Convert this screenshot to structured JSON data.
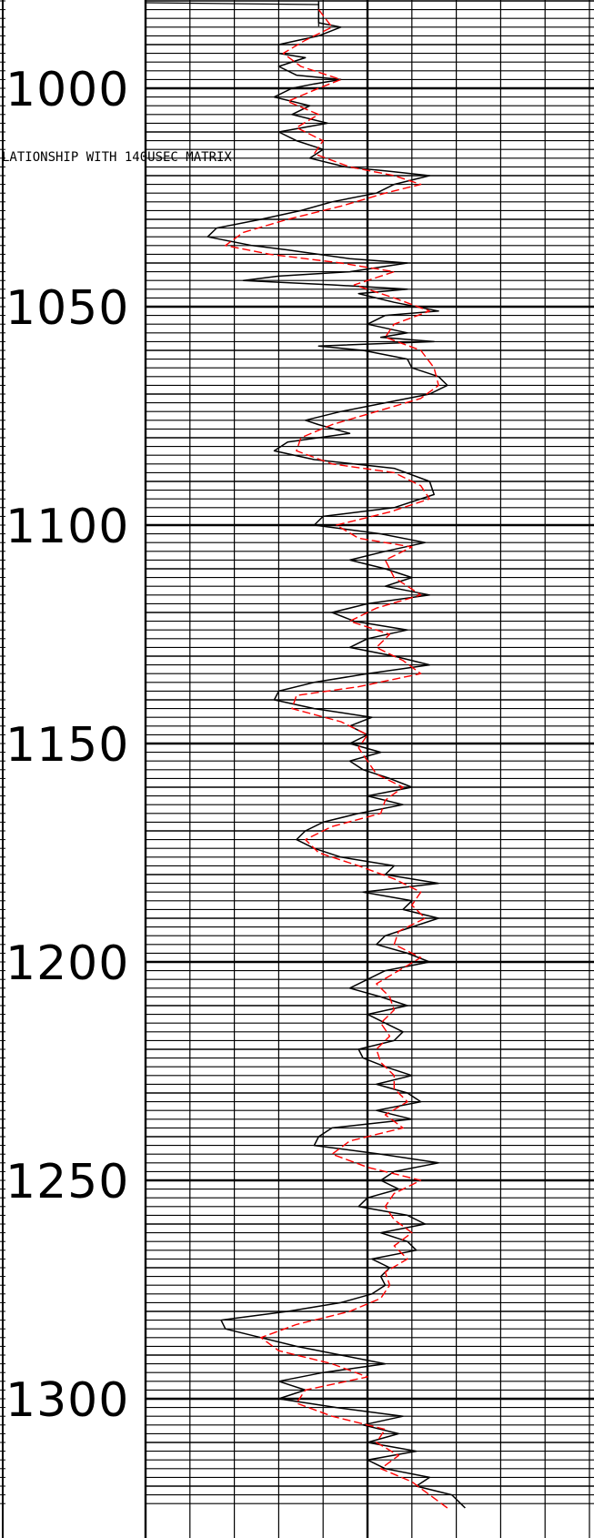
{
  "chart_data": {
    "type": "line",
    "title": "",
    "xlabel": "",
    "ylabel": "",
    "annotation": "LATIONSHIP WITH 140USEC MATRIX",
    "ylim": [
      980,
      1325
    ],
    "y_ticks": [
      1000,
      1050,
      1100,
      1150,
      1200,
      1250,
      1300
    ],
    "y_tick_labels": [
      "1000",
      "1050",
      "1100",
      "1150",
      "1200",
      "1250",
      "1300"
    ],
    "y_minor_step": 2,
    "xlim": [
      0,
      10
    ],
    "grid": true,
    "series": [
      {
        "color": "#000000",
        "style": "solid",
        "points": [
          [
            3.9,
            980
          ],
          [
            3.9,
            985
          ],
          [
            4.4,
            986
          ],
          [
            3.9,
            988
          ],
          [
            3.0,
            990
          ],
          [
            3.0,
            992
          ],
          [
            3.6,
            993
          ],
          [
            3.0,
            995
          ],
          [
            3.4,
            997
          ],
          [
            4.4,
            998
          ],
          [
            3.8,
            999
          ],
          [
            3.3,
            1000
          ],
          [
            2.9,
            1002
          ],
          [
            3.7,
            1004
          ],
          [
            3.3,
            1006
          ],
          [
            4.1,
            1008
          ],
          [
            3.0,
            1010
          ],
          [
            3.4,
            1012
          ],
          [
            4.0,
            1014
          ],
          [
            3.7,
            1016
          ],
          [
            4.5,
            1018
          ],
          [
            5.5,
            1019
          ],
          [
            6.4,
            1020
          ],
          [
            5.6,
            1022
          ],
          [
            5.2,
            1024
          ],
          [
            4.2,
            1026
          ],
          [
            3.5,
            1028
          ],
          [
            2.6,
            1030
          ],
          [
            1.6,
            1032
          ],
          [
            1.4,
            1034
          ],
          [
            2.4,
            1036
          ],
          [
            3.2,
            1037
          ],
          [
            4.6,
            1039
          ],
          [
            5.9,
            1040
          ],
          [
            4.6,
            1042
          ],
          [
            3.0,
            1043
          ],
          [
            2.2,
            1044
          ],
          [
            4.2,
            1045
          ],
          [
            5.9,
            1046
          ],
          [
            4.8,
            1047
          ],
          [
            5.6,
            1049
          ],
          [
            6.6,
            1051
          ],
          [
            5.4,
            1052
          ],
          [
            5.0,
            1054
          ],
          [
            5.9,
            1056
          ],
          [
            5.3,
            1057
          ],
          [
            6.5,
            1058
          ],
          [
            3.9,
            1059
          ],
          [
            4.9,
            1060
          ],
          [
            5.9,
            1062
          ],
          [
            6.0,
            1064
          ],
          [
            6.6,
            1066
          ],
          [
            6.8,
            1068
          ],
          [
            6.4,
            1070
          ],
          [
            5.4,
            1072
          ],
          [
            4.4,
            1074
          ],
          [
            3.6,
            1076
          ],
          [
            3.9,
            1077
          ],
          [
            4.6,
            1079
          ],
          [
            3.2,
            1081
          ],
          [
            2.9,
            1083
          ],
          [
            3.8,
            1085
          ],
          [
            5.6,
            1087
          ],
          [
            6.4,
            1090
          ],
          [
            6.5,
            1093
          ],
          [
            5.6,
            1096
          ],
          [
            4.0,
            1098
          ],
          [
            3.8,
            1100
          ],
          [
            5.3,
            1102
          ],
          [
            6.3,
            1104
          ],
          [
            5.4,
            1106
          ],
          [
            4.6,
            1108
          ],
          [
            5.4,
            1110
          ],
          [
            6.0,
            1112
          ],
          [
            5.4,
            1114
          ],
          [
            6.4,
            1116
          ],
          [
            5.0,
            1118
          ],
          [
            4.2,
            1120
          ],
          [
            4.7,
            1122
          ],
          [
            5.9,
            1124
          ],
          [
            5.0,
            1126
          ],
          [
            4.6,
            1128
          ],
          [
            5.6,
            1130
          ],
          [
            6.4,
            1132
          ],
          [
            5.0,
            1134
          ],
          [
            3.8,
            1136
          ],
          [
            3.0,
            1138
          ],
          [
            2.9,
            1140
          ],
          [
            3.8,
            1142
          ],
          [
            5.1,
            1144
          ],
          [
            4.6,
            1146
          ],
          [
            5.0,
            1148
          ],
          [
            4.6,
            1150
          ],
          [
            5.3,
            1152
          ],
          [
            4.6,
            1154
          ],
          [
            4.9,
            1156
          ],
          [
            5.5,
            1158
          ],
          [
            6.0,
            1160
          ],
          [
            5.0,
            1162
          ],
          [
            5.8,
            1164
          ],
          [
            4.8,
            1166
          ],
          [
            4.0,
            1168
          ],
          [
            3.6,
            1170
          ],
          [
            3.4,
            1172
          ],
          [
            3.8,
            1174
          ],
          [
            4.4,
            1176
          ],
          [
            5.6,
            1178
          ],
          [
            5.4,
            1180
          ],
          [
            6.6,
            1182
          ],
          [
            4.9,
            1184
          ],
          [
            6.0,
            1186
          ],
          [
            5.8,
            1188
          ],
          [
            6.6,
            1190
          ],
          [
            6.0,
            1192
          ],
          [
            5.4,
            1194
          ],
          [
            5.2,
            1196
          ],
          [
            5.9,
            1198
          ],
          [
            6.4,
            1200
          ],
          [
            5.4,
            1202
          ],
          [
            5.0,
            1204
          ],
          [
            4.6,
            1206
          ],
          [
            5.3,
            1208
          ],
          [
            5.9,
            1210
          ],
          [
            5.0,
            1212
          ],
          [
            5.4,
            1214
          ],
          [
            5.8,
            1216
          ],
          [
            5.6,
            1218
          ],
          [
            4.8,
            1220
          ],
          [
            4.9,
            1222
          ],
          [
            5.4,
            1224
          ],
          [
            6.0,
            1226
          ],
          [
            5.2,
            1228
          ],
          [
            5.9,
            1230
          ],
          [
            6.2,
            1232
          ],
          [
            5.2,
            1234
          ],
          [
            6.0,
            1236
          ],
          [
            4.2,
            1238
          ],
          [
            3.9,
            1240
          ],
          [
            3.8,
            1242
          ],
          [
            5.3,
            1244
          ],
          [
            6.6,
            1246
          ],
          [
            5.6,
            1248
          ],
          [
            5.3,
            1250
          ],
          [
            5.7,
            1252
          ],
          [
            5.0,
            1254
          ],
          [
            4.8,
            1256
          ],
          [
            5.9,
            1258
          ],
          [
            6.3,
            1260
          ],
          [
            5.3,
            1262
          ],
          [
            5.9,
            1264
          ],
          [
            6.1,
            1266
          ],
          [
            5.1,
            1268
          ],
          [
            5.5,
            1270
          ],
          [
            5.3,
            1272
          ],
          [
            5.4,
            1274
          ],
          [
            5.1,
            1276
          ],
          [
            4.4,
            1278
          ],
          [
            3.2,
            1280
          ],
          [
            1.7,
            1282
          ],
          [
            1.8,
            1284
          ],
          [
            2.6,
            1286
          ],
          [
            3.4,
            1288
          ],
          [
            4.4,
            1290
          ],
          [
            5.4,
            1292
          ],
          [
            4.0,
            1294
          ],
          [
            3.0,
            1296
          ],
          [
            3.6,
            1298
          ],
          [
            3.0,
            1300
          ],
          [
            4.3,
            1302
          ],
          [
            5.8,
            1304
          ],
          [
            4.9,
            1306
          ],
          [
            5.7,
            1308
          ],
          [
            5.0,
            1310
          ],
          [
            6.1,
            1312
          ],
          [
            5.0,
            1314
          ],
          [
            5.4,
            1316
          ],
          [
            6.4,
            1318
          ],
          [
            6.1,
            1320
          ],
          [
            6.9,
            1322
          ],
          [
            7.2,
            1325
          ]
        ]
      },
      {
        "color": "#ff0000",
        "style": "dashed",
        "points": [
          [
            3.9,
            982
          ],
          [
            4.2,
            986
          ],
          [
            3.6,
            989
          ],
          [
            3.1,
            992
          ],
          [
            3.5,
            995
          ],
          [
            4.4,
            998
          ],
          [
            3.9,
            1000
          ],
          [
            3.2,
            1003
          ],
          [
            3.9,
            1006
          ],
          [
            3.4,
            1009
          ],
          [
            4.0,
            1012
          ],
          [
            3.8,
            1015
          ],
          [
            4.6,
            1018
          ],
          [
            5.6,
            1020
          ],
          [
            6.2,
            1022
          ],
          [
            5.4,
            1024
          ],
          [
            4.4,
            1027
          ],
          [
            3.2,
            1030
          ],
          [
            2.2,
            1033
          ],
          [
            1.8,
            1036
          ],
          [
            2.8,
            1038
          ],
          [
            4.4,
            1040
          ],
          [
            5.6,
            1042
          ],
          [
            4.7,
            1045
          ],
          [
            5.6,
            1048
          ],
          [
            6.4,
            1051
          ],
          [
            5.6,
            1054
          ],
          [
            5.4,
            1057
          ],
          [
            6.2,
            1060
          ],
          [
            6.5,
            1064
          ],
          [
            6.6,
            1068
          ],
          [
            6.2,
            1071
          ],
          [
            5.2,
            1074
          ],
          [
            4.2,
            1077
          ],
          [
            3.5,
            1080
          ],
          [
            3.4,
            1083
          ],
          [
            4.2,
            1086
          ],
          [
            5.6,
            1088
          ],
          [
            6.2,
            1091
          ],
          [
            6.4,
            1094
          ],
          [
            5.5,
            1097
          ],
          [
            4.3,
            1100
          ],
          [
            4.8,
            1103
          ],
          [
            6.0,
            1105
          ],
          [
            5.4,
            1108
          ],
          [
            5.6,
            1112
          ],
          [
            6.2,
            1116
          ],
          [
            5.2,
            1119
          ],
          [
            4.6,
            1122
          ],
          [
            5.5,
            1125
          ],
          [
            5.2,
            1128
          ],
          [
            5.8,
            1131
          ],
          [
            6.2,
            1134
          ],
          [
            4.8,
            1137
          ],
          [
            3.4,
            1139
          ],
          [
            3.3,
            1142
          ],
          [
            4.4,
            1145
          ],
          [
            5.0,
            1148
          ],
          [
            4.8,
            1151
          ],
          [
            5.0,
            1154
          ],
          [
            5.2,
            1157
          ],
          [
            5.8,
            1160
          ],
          [
            5.4,
            1163
          ],
          [
            5.3,
            1166
          ],
          [
            4.2,
            1169
          ],
          [
            3.6,
            1172
          ],
          [
            3.9,
            1175
          ],
          [
            4.8,
            1178
          ],
          [
            5.6,
            1181
          ],
          [
            6.2,
            1184
          ],
          [
            6.0,
            1187
          ],
          [
            6.3,
            1190
          ],
          [
            5.7,
            1193
          ],
          [
            5.6,
            1196
          ],
          [
            6.2,
            1199
          ],
          [
            5.7,
            1202
          ],
          [
            5.2,
            1205
          ],
          [
            5.5,
            1208
          ],
          [
            5.6,
            1211
          ],
          [
            5.3,
            1214
          ],
          [
            5.5,
            1217
          ],
          [
            5.2,
            1220
          ],
          [
            5.3,
            1223
          ],
          [
            5.6,
            1226
          ],
          [
            5.6,
            1229
          ],
          [
            5.9,
            1232
          ],
          [
            5.4,
            1235
          ],
          [
            5.8,
            1238
          ],
          [
            4.6,
            1241
          ],
          [
            4.2,
            1244
          ],
          [
            5.0,
            1247
          ],
          [
            6.2,
            1250
          ],
          [
            5.6,
            1253
          ],
          [
            5.4,
            1256
          ],
          [
            5.6,
            1259
          ],
          [
            6.0,
            1262
          ],
          [
            5.6,
            1265
          ],
          [
            5.9,
            1268
          ],
          [
            5.4,
            1271
          ],
          [
            5.5,
            1274
          ],
          [
            5.3,
            1277
          ],
          [
            4.6,
            1280
          ],
          [
            3.4,
            1283
          ],
          [
            2.6,
            1286
          ],
          [
            3.0,
            1289
          ],
          [
            4.2,
            1292
          ],
          [
            5.0,
            1295
          ],
          [
            3.6,
            1298
          ],
          [
            3.4,
            1301
          ],
          [
            4.2,
            1304
          ],
          [
            5.4,
            1307
          ],
          [
            5.2,
            1310
          ],
          [
            5.7,
            1313
          ],
          [
            5.3,
            1316
          ],
          [
            6.0,
            1319
          ],
          [
            6.4,
            1322
          ],
          [
            6.8,
            1325
          ]
        ]
      }
    ]
  }
}
